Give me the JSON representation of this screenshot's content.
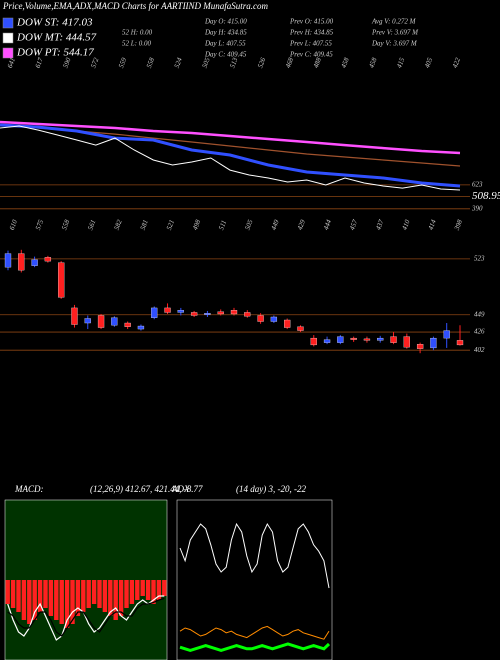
{
  "header": {
    "title": "Price,Volume,EMA,ADX,MACD Charts for AARTIIND MunafaSutra.com"
  },
  "legend": [
    {
      "label": "DOW ST: 417.03",
      "color": "#3050ff"
    },
    {
      "label": "DOW MT: 444.57",
      "color": "#ffffff"
    },
    {
      "label": "DOW PT: 544.17",
      "color": "#ff50ff"
    }
  ],
  "stats": [
    [
      "52  H: 0.00",
      "52  L: 0.00"
    ],
    [
      "Day O: 415.00",
      "Day H: 434.85",
      "Day L: 407.55",
      "Day C: 409.45"
    ],
    [
      "Prev  O: 415.00",
      "Prev  H: 434.85",
      "Prev  L: 407.55",
      "Prev  C: 409.45"
    ],
    [
      "Avg V: 0.272  M",
      "Prev  V: 3.697  M",
      "Day V: 3.697  M"
    ]
  ],
  "chart_data": [
    {
      "type": "line",
      "top_labels": [
        "641",
        "617",
        "590",
        "572",
        "559",
        "558",
        "524",
        "505",
        "513",
        "526",
        "468",
        "488",
        "458",
        "458",
        "415",
        "405",
        "422"
      ],
      "ylim": [
        330,
        1740
      ],
      "yticks": [
        623,
        508.95,
        390
      ],
      "tick_color": "#8b4513",
      "series": [
        {
          "name": "DOW PT",
          "color": "#ff50ff",
          "width": 2.5,
          "values": [
            1234,
            1215,
            1195,
            1176,
            1147,
            1127,
            1098,
            1069,
            1040,
            1010,
            981,
            952,
            933
          ]
        },
        {
          "name": "EMA",
          "color": "#a0522d",
          "width": 1.2,
          "values": [
            1205,
            1176,
            1147,
            1117,
            1078,
            1040,
            1001,
            962,
            923,
            894,
            865,
            836,
            806
          ]
        },
        {
          "name": "DOW ST",
          "color": "#3050ff",
          "width": 3,
          "values": [
            1205,
            1185,
            1147,
            1078,
            1059,
            962,
            913,
            816,
            748,
            719,
            690,
            641,
            612
          ]
        },
        {
          "name": "Price",
          "color": "#ffffff",
          "width": 1,
          "values": [
            1176,
            1195,
            1156,
            1108,
            1059,
            1010,
            1078,
            962,
            865,
            816,
            845,
            884,
            767,
            719,
            690,
            651,
            670,
            622,
            690,
            641,
            612,
            592,
            622,
            583,
            573
          ]
        }
      ]
    },
    {
      "type": "candlestick",
      "top_labels": [
        "610",
        "575",
        "558",
        "561",
        "582",
        "581",
        "521",
        "498",
        "511",
        "505",
        "449",
        "429",
        "444",
        "457",
        "437",
        "410",
        "414",
        "398"
      ],
      "ylim": [
        336,
        548
      ],
      "yticks": [
        523,
        449,
        426,
        402
      ],
      "tick_color": "#8b4513",
      "up_color": "#3050ff",
      "down_color": "#ff2020",
      "open": [
        512,
        530,
        514,
        525,
        518,
        458,
        438,
        448,
        435,
        438,
        430,
        445,
        458,
        452,
        452,
        449,
        453,
        455,
        452,
        448,
        440,
        442,
        433,
        418,
        412,
        412,
        418,
        417,
        415,
        420,
        420,
        410,
        405,
        418,
        415
      ],
      "high": [
        534,
        535,
        526,
        527,
        520,
        462,
        448,
        450,
        447,
        440,
        436,
        460,
        464,
        458,
        454,
        454,
        456,
        458,
        455,
        451,
        448,
        444,
        435,
        422,
        420,
        422,
        420,
        420,
        421,
        426,
        424,
        412,
        420,
        438,
        435
      ],
      "low": [
        508,
        505,
        512,
        518,
        470,
        432,
        430,
        430,
        433,
        430,
        428,
        443,
        450,
        448,
        446,
        446,
        448,
        448,
        445,
        437,
        438,
        430,
        426,
        407,
        410,
        410,
        413,
        412,
        412,
        410,
        404,
        398,
        402,
        405,
        408
      ],
      "close": [
        530,
        508,
        522,
        520,
        472,
        436,
        444,
        432,
        445,
        433,
        434,
        458,
        452,
        455,
        448,
        451,
        450,
        450,
        447,
        440,
        446,
        432,
        428,
        409,
        416,
        420,
        416,
        415,
        418,
        412,
        406,
        404,
        418,
        428,
        409
      ]
    },
    {
      "type": "macd",
      "title": "MACD:",
      "subtitle": "(12,26,9) 412.67, 421.44, -8.77",
      "ylim": [
        -10,
        10
      ],
      "background": "#003300",
      "histogram": {
        "color": "#ff2020",
        "values": [
          -3,
          -3.5,
          -4,
          -5,
          -5.5,
          -5,
          -4,
          -3.5,
          -4.5,
          -5,
          -5.5,
          -6,
          -5.5,
          -4.5,
          -4,
          -3.5,
          -3,
          -3.5,
          -4,
          -4.5,
          -5,
          -4.5,
          -3.5,
          -3,
          -2.5,
          -2,
          -2.5,
          -3,
          -2.5,
          -2
        ]
      },
      "series": [
        {
          "name": "MACD",
          "color": "#ffffff",
          "values": [
            -3,
            -5,
            -6.5,
            -7,
            -6,
            -4,
            -3,
            -4.5,
            -6,
            -7.5,
            -7,
            -5,
            -4,
            -3.5,
            -4,
            -5.5,
            -6.5,
            -6,
            -5,
            -4,
            -3.5,
            -4.5,
            -5,
            -4,
            -3,
            -2.5,
            -3,
            -2.5,
            -2,
            -2
          ]
        },
        {
          "name": "Signal",
          "color": "#000000",
          "values": [
            -4,
            -4.5,
            -5.5,
            -6,
            -6,
            -5,
            -4,
            -4,
            -5,
            -6.5,
            -7,
            -6,
            -5,
            -4,
            -4,
            -5,
            -6,
            -6.5,
            -5.5,
            -4.5,
            -4,
            -4,
            -4.5,
            -4.5,
            -3.5,
            -3,
            -3,
            -2.8,
            -2.5,
            -2.3
          ]
        }
      ]
    },
    {
      "type": "adx",
      "title": "ADX",
      "subtitle": "(14 day) 3, -20, -22",
      "ylim": [
        0,
        100
      ],
      "background": "#000000",
      "series": [
        {
          "name": "ADX",
          "color": "#ffffff",
          "width": 1,
          "values": [
            70,
            62,
            75,
            80,
            85,
            82,
            72,
            60,
            55,
            58,
            75,
            85,
            80,
            65,
            55,
            60,
            78,
            85,
            80,
            62,
            55,
            58,
            70,
            82,
            85,
            80,
            72,
            68,
            62,
            45
          ]
        },
        {
          "name": "+DI",
          "color": "#ff8c00",
          "width": 1,
          "values": [
            18,
            20,
            19,
            17,
            15,
            16,
            18,
            20,
            19,
            17,
            18,
            16,
            15,
            14,
            16,
            18,
            20,
            21,
            19,
            17,
            15,
            16,
            18,
            19,
            17,
            16,
            15,
            14,
            13,
            18
          ]
        },
        {
          "name": "-DI",
          "color": "#00ff00",
          "width": 3,
          "values": [
            8,
            7,
            6,
            7,
            8,
            9,
            8,
            7,
            6,
            7,
            8,
            9,
            8,
            7,
            7,
            8,
            9,
            8,
            7,
            8,
            9,
            10,
            9,
            8,
            7,
            8,
            9,
            8,
            7,
            10
          ]
        }
      ]
    }
  ]
}
